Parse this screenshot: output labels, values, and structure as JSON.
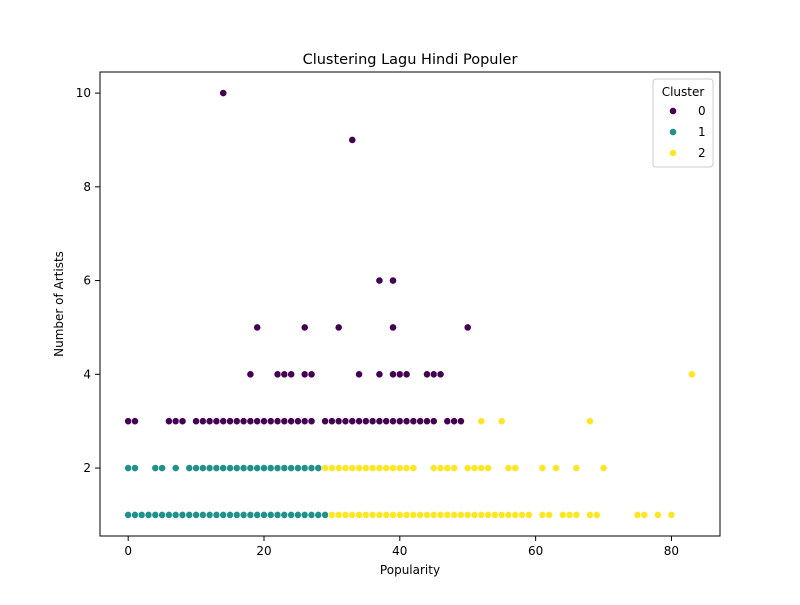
{
  "chart_data": {
    "type": "scatter",
    "title": "Clustering Lagu Hindi Populer",
    "xlabel": "Popularity",
    "ylabel": "Number of Artists",
    "xlim": [
      -4.15,
      87.15
    ],
    "ylim": [
      0.55,
      10.45
    ],
    "xticks": [
      0,
      20,
      40,
      60,
      80
    ],
    "yticks": [
      2,
      4,
      6,
      8,
      10
    ],
    "grid": false,
    "legend": {
      "title": "Cluster",
      "position": "top-right"
    },
    "series": [
      {
        "name": "0",
        "color": "#440154",
        "points": [
          [
            14,
            10
          ],
          [
            33,
            9
          ],
          [
            37,
            6
          ],
          [
            39,
            6
          ],
          [
            19,
            5
          ],
          [
            26,
            5
          ],
          [
            31,
            5
          ],
          [
            39,
            5
          ],
          [
            50,
            5
          ],
          [
            18,
            4
          ],
          [
            22,
            4
          ],
          [
            23,
            4
          ],
          [
            24,
            4
          ],
          [
            26,
            4
          ],
          [
            27,
            4
          ],
          [
            34,
            4
          ],
          [
            37,
            4
          ],
          [
            39,
            4
          ],
          [
            40,
            4
          ],
          [
            41,
            4
          ],
          [
            44,
            4
          ],
          [
            45,
            4
          ],
          [
            46,
            4
          ],
          [
            0,
            3
          ],
          [
            1,
            3
          ],
          [
            6,
            3
          ],
          [
            7,
            3
          ],
          [
            8,
            3
          ],
          [
            10,
            3
          ],
          [
            11,
            3
          ],
          [
            12,
            3
          ],
          [
            13,
            3
          ],
          [
            14,
            3
          ],
          [
            15,
            3
          ],
          [
            16,
            3
          ],
          [
            17,
            3
          ],
          [
            18,
            3
          ],
          [
            19,
            3
          ],
          [
            20,
            3
          ],
          [
            21,
            3
          ],
          [
            22,
            3
          ],
          [
            23,
            3
          ],
          [
            24,
            3
          ],
          [
            25,
            3
          ],
          [
            26,
            3
          ],
          [
            27,
            3
          ],
          [
            29,
            3
          ],
          [
            30,
            3
          ],
          [
            31,
            3
          ],
          [
            32,
            3
          ],
          [
            33,
            3
          ],
          [
            34,
            3
          ],
          [
            35,
            3
          ],
          [
            36,
            3
          ],
          [
            37,
            3
          ],
          [
            38,
            3
          ],
          [
            39,
            3
          ],
          [
            40,
            3
          ],
          [
            41,
            3
          ],
          [
            42,
            3
          ],
          [
            43,
            3
          ],
          [
            44,
            3
          ],
          [
            45,
            3
          ],
          [
            47,
            3
          ],
          [
            48,
            3
          ],
          [
            49,
            3
          ]
        ]
      },
      {
        "name": "1",
        "color": "#21918c",
        "points": [
          [
            0,
            2
          ],
          [
            1,
            2
          ],
          [
            4,
            2
          ],
          [
            5,
            2
          ],
          [
            7,
            2
          ],
          [
            9,
            2
          ],
          [
            10,
            2
          ],
          [
            11,
            2
          ],
          [
            12,
            2
          ],
          [
            13,
            2
          ],
          [
            14,
            2
          ],
          [
            15,
            2
          ],
          [
            16,
            2
          ],
          [
            17,
            2
          ],
          [
            18,
            2
          ],
          [
            19,
            2
          ],
          [
            20,
            2
          ],
          [
            21,
            2
          ],
          [
            22,
            2
          ],
          [
            23,
            2
          ],
          [
            24,
            2
          ],
          [
            25,
            2
          ],
          [
            26,
            2
          ],
          [
            27,
            2
          ],
          [
            28,
            2
          ],
          [
            0,
            1
          ],
          [
            1,
            1
          ],
          [
            2,
            1
          ],
          [
            3,
            1
          ],
          [
            4,
            1
          ],
          [
            5,
            1
          ],
          [
            6,
            1
          ],
          [
            7,
            1
          ],
          [
            8,
            1
          ],
          [
            9,
            1
          ],
          [
            10,
            1
          ],
          [
            11,
            1
          ],
          [
            12,
            1
          ],
          [
            13,
            1
          ],
          [
            14,
            1
          ],
          [
            15,
            1
          ],
          [
            16,
            1
          ],
          [
            17,
            1
          ],
          [
            18,
            1
          ],
          [
            19,
            1
          ],
          [
            20,
            1
          ],
          [
            21,
            1
          ],
          [
            22,
            1
          ],
          [
            23,
            1
          ],
          [
            24,
            1
          ],
          [
            25,
            1
          ],
          [
            26,
            1
          ],
          [
            27,
            1
          ],
          [
            28,
            1
          ],
          [
            29,
            1
          ]
        ]
      },
      {
        "name": "2",
        "color": "#fde725",
        "points": [
          [
            83,
            4
          ],
          [
            52,
            3
          ],
          [
            55,
            3
          ],
          [
            68,
            3
          ],
          [
            29,
            2
          ],
          [
            30,
            2
          ],
          [
            31,
            2
          ],
          [
            32,
            2
          ],
          [
            33,
            2
          ],
          [
            34,
            2
          ],
          [
            35,
            2
          ],
          [
            36,
            2
          ],
          [
            37,
            2
          ],
          [
            38,
            2
          ],
          [
            39,
            2
          ],
          [
            40,
            2
          ],
          [
            41,
            2
          ],
          [
            42,
            2
          ],
          [
            45,
            2
          ],
          [
            46,
            2
          ],
          [
            47,
            2
          ],
          [
            48,
            2
          ],
          [
            50,
            2
          ],
          [
            51,
            2
          ],
          [
            52,
            2
          ],
          [
            53,
            2
          ],
          [
            56,
            2
          ],
          [
            57,
            2
          ],
          [
            61,
            2
          ],
          [
            63,
            2
          ],
          [
            66,
            2
          ],
          [
            70,
            2
          ],
          [
            30,
            1
          ],
          [
            31,
            1
          ],
          [
            32,
            1
          ],
          [
            33,
            1
          ],
          [
            34,
            1
          ],
          [
            35,
            1
          ],
          [
            36,
            1
          ],
          [
            37,
            1
          ],
          [
            38,
            1
          ],
          [
            39,
            1
          ],
          [
            40,
            1
          ],
          [
            41,
            1
          ],
          [
            42,
            1
          ],
          [
            43,
            1
          ],
          [
            44,
            1
          ],
          [
            45,
            1
          ],
          [
            46,
            1
          ],
          [
            47,
            1
          ],
          [
            48,
            1
          ],
          [
            49,
            1
          ],
          [
            50,
            1
          ],
          [
            51,
            1
          ],
          [
            52,
            1
          ],
          [
            53,
            1
          ],
          [
            54,
            1
          ],
          [
            55,
            1
          ],
          [
            56,
            1
          ],
          [
            57,
            1
          ],
          [
            58,
            1
          ],
          [
            59,
            1
          ],
          [
            61,
            1
          ],
          [
            62,
            1
          ],
          [
            64,
            1
          ],
          [
            65,
            1
          ],
          [
            66,
            1
          ],
          [
            68,
            1
          ],
          [
            69,
            1
          ],
          [
            75,
            1
          ],
          [
            76,
            1
          ],
          [
            78,
            1
          ],
          [
            80,
            1
          ]
        ]
      }
    ]
  }
}
